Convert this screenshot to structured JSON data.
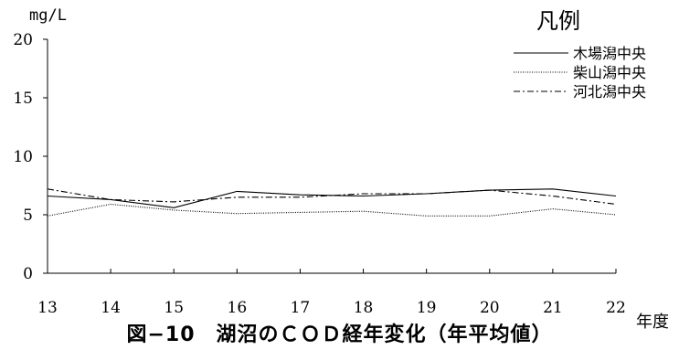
{
  "chart_data": {
    "type": "line",
    "title": "",
    "ylabel": "mg/L",
    "xlabel": "年度",
    "legend_title": "凡例",
    "legend_position": "top-right",
    "x": [
      "13",
      "14",
      "15",
      "16",
      "17",
      "18",
      "19",
      "20",
      "21",
      "22"
    ],
    "yticks": [
      "0",
      "5",
      "10",
      "15",
      "20"
    ],
    "ylim": [
      0,
      20
    ],
    "grid": false,
    "series": [
      {
        "name": "木場潟中央",
        "style": "solid",
        "values": [
          6.6,
          6.3,
          5.6,
          7.0,
          6.7,
          6.6,
          6.8,
          7.1,
          7.2,
          6.6
        ]
      },
      {
        "name": "柴山潟中央",
        "style": "dotted",
        "values": [
          4.9,
          5.9,
          5.4,
          5.1,
          5.2,
          5.3,
          4.9,
          4.9,
          5.5,
          5.0
        ]
      },
      {
        "name": "河北潟中央",
        "style": "dashdot",
        "values": [
          7.2,
          6.3,
          6.1,
          6.5,
          6.5,
          6.8,
          6.8,
          7.1,
          6.6,
          5.9
        ]
      }
    ]
  },
  "caption": "図−10　湖沼のＣＯＤ経年変化（年平均値）"
}
